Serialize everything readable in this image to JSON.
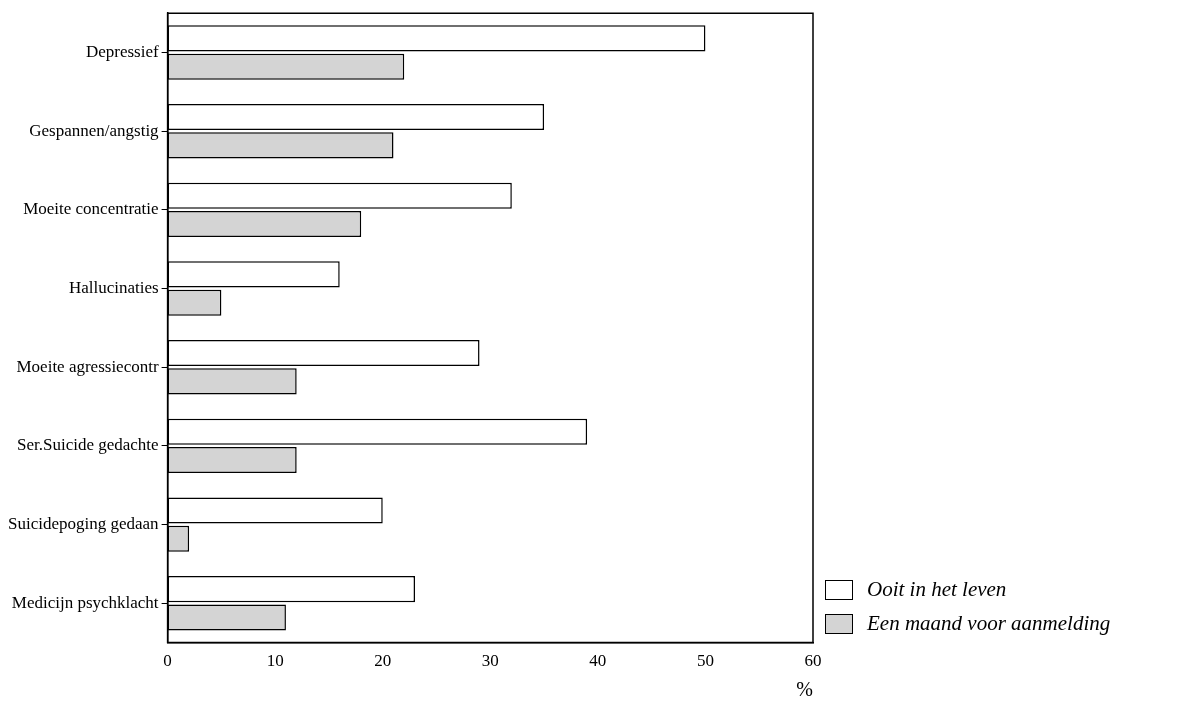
{
  "chart_data": {
    "type": "bar",
    "orientation": "horizontal",
    "categories": [
      "Depressief",
      "Gespannen/angstig",
      "Moeite concentratie",
      "Hallucinaties",
      "Moeite agressiecontr",
      "Ser.Suicide gedachte",
      "Suicidepoging gedaan",
      "Medicijn psychklacht"
    ],
    "series": [
      {
        "name": "Ooit in het leven",
        "color": "#ffffff",
        "values": [
          50,
          35,
          32,
          16,
          29,
          39,
          20,
          23
        ]
      },
      {
        "name": "Een maand voor aanmelding",
        "color": "#d4d4d4",
        "values": [
          22,
          21,
          18,
          5,
          12,
          12,
          2,
          11
        ]
      }
    ],
    "xlabel": "%",
    "xlim": [
      0,
      60
    ],
    "xticks": [
      0,
      10,
      20,
      30,
      40,
      50,
      60
    ],
    "grid": false,
    "legend": "bottom right"
  }
}
